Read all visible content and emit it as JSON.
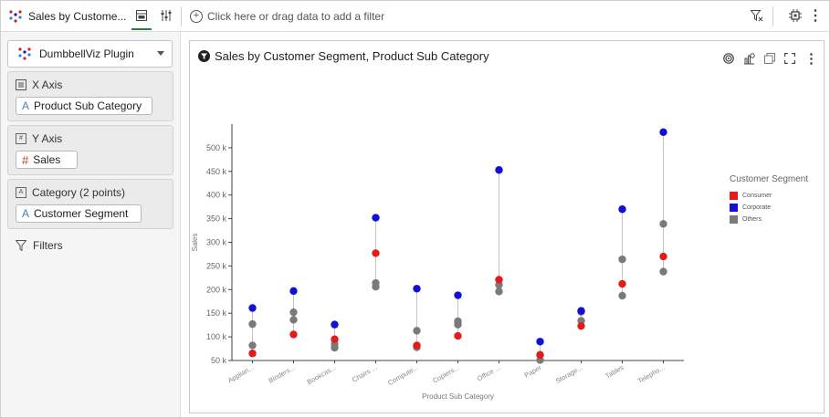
{
  "tab": {
    "title": "Sales by Custome..."
  },
  "filterbar": {
    "placeholder": "Click here or drag data to add a filter"
  },
  "left_panel": {
    "plugin": "DumbbellViz Plugin",
    "x_axis": {
      "label": "X Axis",
      "field": "Product Sub Category"
    },
    "y_axis": {
      "label": "Y Axis",
      "field": "Sales"
    },
    "category": {
      "label": "Category (2 points)",
      "field": "Customer Segment"
    },
    "filters_label": "Filters"
  },
  "viz": {
    "title": "Sales by Customer Segment, Product Sub Category"
  },
  "legend": {
    "title": "Customer Segment",
    "items": [
      {
        "name": "Consumer",
        "color": "#e51a1a"
      },
      {
        "name": "Corporate",
        "color": "#1010d8"
      },
      {
        "name": "Others",
        "color": "#7a7a7a"
      }
    ]
  },
  "chart_data": {
    "type": "scatter",
    "subtype": "dumbbell",
    "title": "Sales by Customer Segment, Product Sub Category",
    "xlabel": "Product Sub Category",
    "ylabel": "Sales",
    "ylim": [
      50000,
      550000
    ],
    "yticks": [
      50000,
      100000,
      150000,
      200000,
      250000,
      300000,
      350000,
      400000,
      450000,
      500000
    ],
    "ytick_labels": [
      "50 k",
      "100 k",
      "150 k",
      "200 k",
      "250 k",
      "300 k",
      "350 k",
      "400 k",
      "450 k",
      "500 k"
    ],
    "categories": [
      "Applian...",
      "Binders...",
      "Bookcas...",
      "Chairs ...",
      "Compute...",
      "Copiers...",
      "Office ...",
      "Paper",
      "Storage...",
      "Tables",
      "Telepho..."
    ],
    "series": [
      {
        "name": "Consumer",
        "color": "#e51a1a",
        "values": [
          65000,
          105000,
          95000,
          277000,
          82000,
          102000,
          221000,
          62000,
          123000,
          212000,
          270000
        ]
      },
      {
        "name": "Corporate",
        "color": "#1010d8",
        "values": [
          161000,
          197000,
          126000,
          352000,
          202000,
          188000,
          453000,
          90000,
          155000,
          370000,
          533000
        ]
      },
      {
        "name": "Others",
        "color": "#7a7a7a",
        "values": [
          [
            127000,
            82000
          ],
          [
            152000,
            136000
          ],
          [
            85000,
            77000
          ],
          [
            214000,
            206000
          ],
          [
            113000,
            78000
          ],
          [
            133000,
            126000
          ],
          [
            210000,
            196000
          ],
          [
            62000,
            51000
          ],
          [
            153000,
            134000
          ],
          [
            264000,
            187000
          ],
          [
            339000,
            238000
          ]
        ]
      }
    ]
  }
}
